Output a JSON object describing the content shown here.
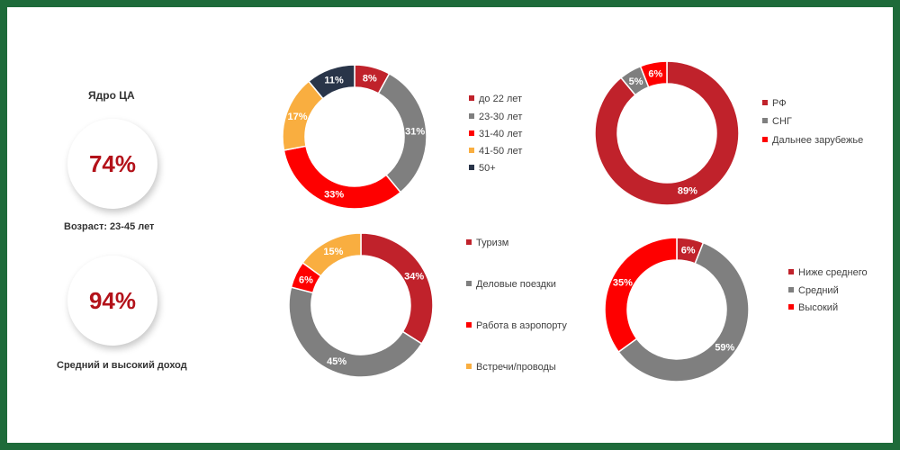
{
  "colors": {
    "frame": "#1e6b3a",
    "dark_red": "#c0222b",
    "gray": "#7f7f7f",
    "red": "#fe0000",
    "orange": "#f9ae40",
    "navy": "#293549",
    "kpi_text": "#b3121a"
  },
  "left_panel": {
    "core_title": "Ядро ЦА",
    "kpi_1": {
      "value": "74%",
      "caption": "Возраст: 23-45 лет"
    },
    "kpi_2": {
      "value": "94%",
      "caption": "Средний и высокий доход"
    }
  },
  "chart_data": [
    {
      "type": "pie",
      "donut": true,
      "categories": [
        "до 22 лет",
        "23-30 лет",
        "31-40 лет",
        "41-50 лет",
        "50+"
      ],
      "values": [
        8,
        31,
        33,
        17,
        11
      ],
      "labels": [
        "8%",
        "31%",
        "33%",
        "17%",
        "11%"
      ],
      "colors": [
        "#c0222b",
        "#7f7f7f",
        "#fe0000",
        "#f9ae40",
        "#293549"
      ],
      "legend": "right"
    },
    {
      "type": "pie",
      "donut": true,
      "categories": [
        "РФ",
        "СНГ",
        "Дальнее зарубежье"
      ],
      "values": [
        89,
        5,
        6
      ],
      "labels": [
        "89%",
        "5%",
        "6%"
      ],
      "colors": [
        "#c0222b",
        "#7f7f7f",
        "#fe0000"
      ],
      "legend": "right"
    },
    {
      "type": "pie",
      "donut": true,
      "categories": [
        "Туризм",
        "Деловые поездки",
        "Работа в аэропорту",
        "Встречи/проводы"
      ],
      "values": [
        34,
        45,
        6,
        15
      ],
      "labels": [
        "34%",
        "45%",
        "6%",
        "15%"
      ],
      "colors": [
        "#c0222b",
        "#7f7f7f",
        "#fe0000",
        "#f9ae40"
      ],
      "legend": "right"
    },
    {
      "type": "pie",
      "donut": true,
      "categories": [
        "Ниже среднего",
        "Средний",
        "Высокий"
      ],
      "values": [
        6,
        59,
        35
      ],
      "labels": [
        "6%",
        "59%",
        "35%"
      ],
      "colors": [
        "#c0222b",
        "#7f7f7f",
        "#fe0000"
      ],
      "legend": "right"
    }
  ]
}
